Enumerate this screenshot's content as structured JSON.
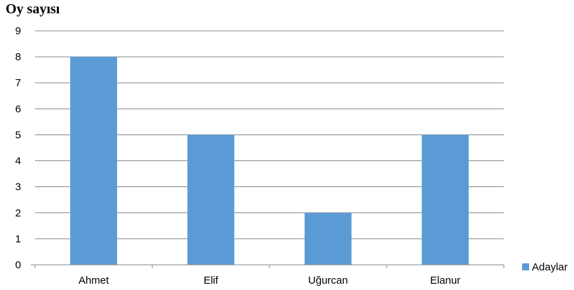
{
  "chart_data": {
    "type": "bar",
    "title": "",
    "ylabel": "Oy sayısı",
    "xlabel": "",
    "categories": [
      "Ahmet",
      "Elif",
      "Uğurcan",
      "Elanur"
    ],
    "series": [
      {
        "name": "Adaylar",
        "values": [
          8,
          5,
          2,
          5
        ],
        "color": "#5b9bd5"
      }
    ],
    "ylim": [
      0,
      9
    ],
    "yticks": [
      0,
      1,
      2,
      3,
      4,
      5,
      6,
      7,
      8,
      9
    ],
    "grid": true,
    "legend": "right-bottom"
  }
}
